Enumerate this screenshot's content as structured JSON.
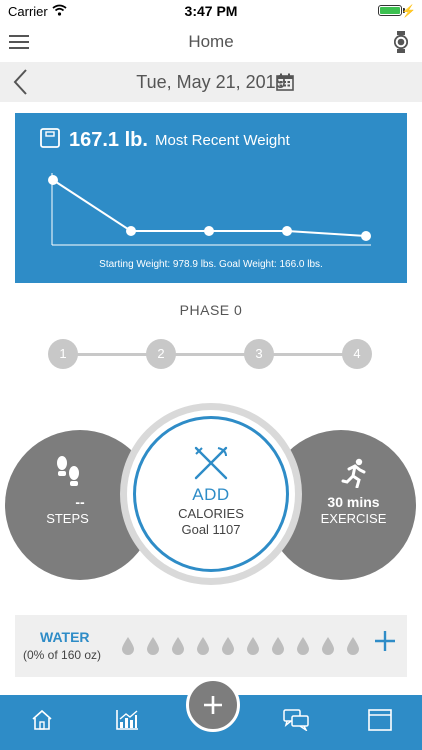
{
  "status_bar": {
    "carrier": "Carrier",
    "time": "3:47 PM"
  },
  "nav": {
    "title": "Home"
  },
  "date_row": {
    "date": "Tue, May 21, 2019"
  },
  "weight_card": {
    "value": "167.1 lb.",
    "label": "Most Recent Weight",
    "footer": "Starting Weight: 978.9 lbs. Goal Weight: 166.0 lbs."
  },
  "phase": {
    "title": "PHASE 0",
    "steps": [
      "1",
      "2",
      "3",
      "4"
    ]
  },
  "steps_circle": {
    "value": "--",
    "label": "STEPS"
  },
  "calories_circle": {
    "add": "ADD",
    "label": "CALORIES",
    "goal": "Goal 1107"
  },
  "exercise_circle": {
    "value": "30 mins",
    "label": "EXERCISE"
  },
  "water": {
    "title": "WATER",
    "progress": "(0% of 160 oz)",
    "drops": 10,
    "filled": 0
  },
  "colors": {
    "accent": "#2e8cc7",
    "neutral": "#7d7d7d",
    "panel": "#efefef"
  },
  "icons": [
    "menu-icon",
    "watch-icon",
    "back-icon",
    "calendar-icon",
    "scale-icon",
    "footsteps-icon",
    "fork-knife-icon",
    "runner-icon",
    "water-drop-icon",
    "plus-icon",
    "home-icon",
    "chart-icon",
    "chat-icon",
    "window-icon"
  ]
}
